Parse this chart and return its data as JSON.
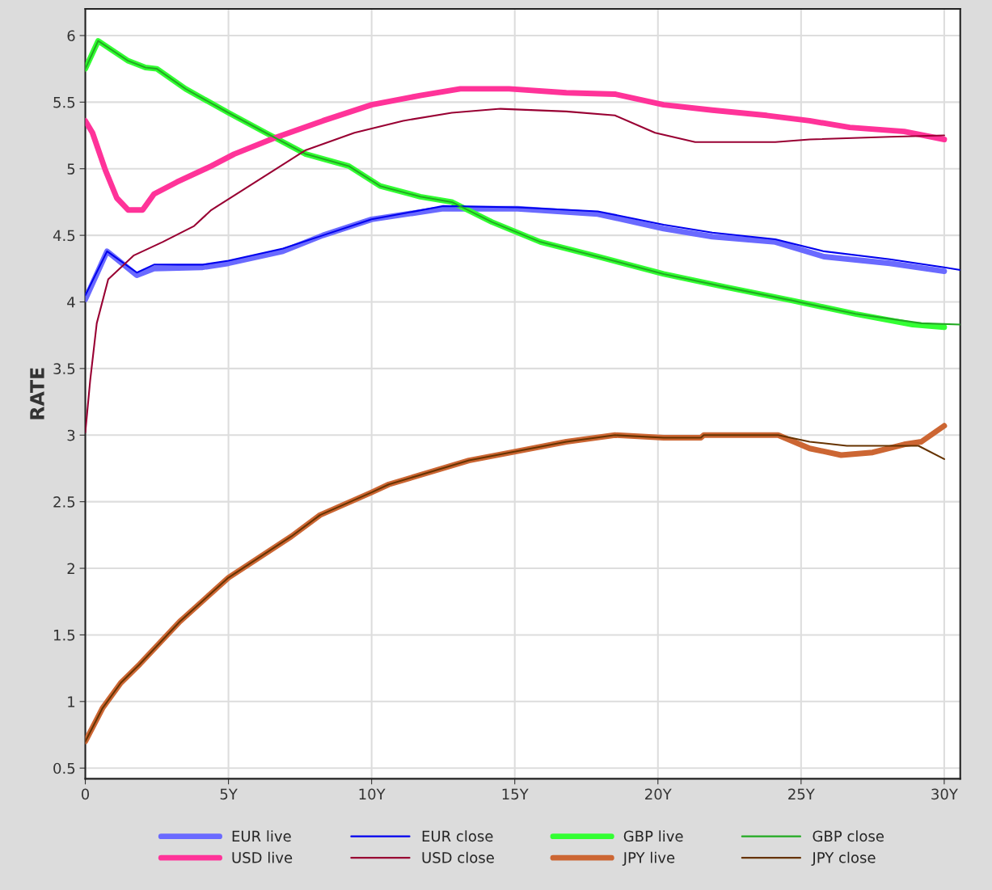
{
  "chart_data": {
    "type": "line",
    "ylabel": "RATE",
    "xlim": [
      0,
      30.56
    ],
    "ylim": [
      0.42,
      6.2
    ],
    "xticks": [
      0,
      {
        "value": 5,
        "label": "5Y"
      },
      {
        "value": 10,
        "label": "10Y"
      },
      {
        "value": 15,
        "label": "15Y"
      },
      {
        "value": 20,
        "label": "20Y"
      },
      {
        "value": 25,
        "label": "25Y"
      },
      {
        "value": 30,
        "label": "30Y"
      }
    ],
    "yticks": [
      0.5,
      1,
      1.5,
      2,
      2.5,
      3,
      3.5,
      4,
      4.5,
      5,
      5.5,
      6
    ],
    "grid": true,
    "legend": "bottom",
    "marker": "none",
    "line_style": "solid",
    "series": [
      {
        "name": "EUR live",
        "color": "#6a6aff",
        "x": [
          0,
          0.76,
          1.8,
          2.4,
          4.1,
          5,
          6.9,
          8.3,
          10,
          12.5,
          15.1,
          17.9,
          20.2,
          21.9,
          24.1,
          25.8,
          28.1,
          30
        ],
        "values": [
          4.02,
          4.38,
          4.2,
          4.25,
          4.26,
          4.29,
          4.38,
          4.5,
          4.62,
          4.7,
          4.7,
          4.66,
          4.55,
          4.49,
          4.45,
          4.34,
          4.29,
          4.23
        ]
      },
      {
        "name": "EUR close",
        "color": "#0000ee",
        "x": [
          0,
          0.76,
          1.8,
          2.4,
          4.1,
          5,
          6.9,
          8.3,
          10,
          12.5,
          15.1,
          17.9,
          20.2,
          21.9,
          24.1,
          25.8,
          28.1,
          30,
          30.56
        ],
        "values": [
          4.05,
          4.38,
          4.22,
          4.28,
          4.28,
          4.31,
          4.4,
          4.5,
          4.62,
          4.72,
          4.71,
          4.68,
          4.58,
          4.52,
          4.47,
          4.38,
          4.32,
          4.26,
          4.24
        ]
      },
      {
        "name": "GBP live",
        "color": "#33ff33",
        "x": [
          0,
          0.45,
          1.5,
          2.1,
          2.5,
          3.5,
          5,
          6.3,
          7.7,
          9.2,
          10.3,
          11.7,
          12.8,
          14.2,
          15.9,
          17.9,
          20.2,
          22.4,
          24.7,
          26.9,
          28.9,
          30
        ],
        "values": [
          5.75,
          5.96,
          5.81,
          5.76,
          5.75,
          5.6,
          5.42,
          5.27,
          5.11,
          5.02,
          4.87,
          4.79,
          4.75,
          4.6,
          4.45,
          4.34,
          4.21,
          4.11,
          4.01,
          3.91,
          3.83,
          3.81
        ]
      },
      {
        "name": "GBP close",
        "color": "#22aa22",
        "x": [
          0,
          0.45,
          1.5,
          2.1,
          2.5,
          3.5,
          5,
          6.3,
          7.7,
          9.2,
          10.3,
          11.7,
          12.8,
          14.2,
          15.9,
          17.9,
          20.2,
          22.4,
          24.7,
          26.9,
          29.2,
          30.56
        ],
        "values": [
          5.75,
          5.96,
          5.81,
          5.76,
          5.75,
          5.6,
          5.42,
          5.27,
          5.11,
          5.02,
          4.87,
          4.79,
          4.75,
          4.6,
          4.45,
          4.34,
          4.21,
          4.11,
          4.01,
          3.91,
          3.84,
          3.83
        ]
      },
      {
        "name": "USD live",
        "color": "#ff3399",
        "x": [
          0,
          0.25,
          0.7,
          1.1,
          1.5,
          2,
          2.4,
          3.2,
          4.4,
          5.2,
          6.6,
          8.3,
          10,
          11.7,
          13.1,
          14.8,
          16.8,
          18.5,
          20.2,
          21.9,
          23.8,
          25.3,
          26.7,
          28.6,
          30
        ],
        "values": [
          5.36,
          5.27,
          4.99,
          4.78,
          4.69,
          4.69,
          4.81,
          4.9,
          5.02,
          5.11,
          5.23,
          5.36,
          5.48,
          5.55,
          5.6,
          5.6,
          5.57,
          5.56,
          5.48,
          5.44,
          5.4,
          5.36,
          5.31,
          5.28,
          5.22
        ]
      },
      {
        "name": "USD close",
        "color": "#990033",
        "x": [
          0,
          0.17,
          0.4,
          0.8,
          1.7,
          2.7,
          3.8,
          4.4,
          5.5,
          6.6,
          7.7,
          9.4,
          11.1,
          12.8,
          14.5,
          16.8,
          18.5,
          19.9,
          21.3,
          24.1,
          25.3,
          28.1,
          30
        ],
        "values": [
          3.02,
          3.41,
          3.84,
          4.17,
          4.35,
          4.45,
          4.57,
          4.69,
          4.84,
          4.99,
          5.14,
          5.27,
          5.36,
          5.42,
          5.45,
          5.43,
          5.4,
          5.27,
          5.2,
          5.2,
          5.22,
          5.24,
          5.25
        ]
      },
      {
        "name": "JPY live",
        "color": "#cc6633",
        "x": [
          0,
          0.6,
          1.24,
          1.9,
          3.3,
          5,
          7.2,
          8.2,
          10,
          10.6,
          13.4,
          15.1,
          16.8,
          18.5,
          20.2,
          21.5,
          21.6,
          24.2,
          25.3,
          26.4,
          27.5,
          28.6,
          29.2,
          30
        ],
        "values": [
          0.7,
          0.95,
          1.14,
          1.28,
          1.6,
          1.93,
          2.24,
          2.4,
          2.57,
          2.63,
          2.81,
          2.88,
          2.95,
          3.0,
          2.98,
          2.98,
          3.0,
          3.0,
          2.9,
          2.85,
          2.87,
          2.93,
          2.95,
          3.07
        ]
      },
      {
        "name": "JPY close",
        "color": "#663300",
        "x": [
          0,
          0.6,
          1.24,
          1.9,
          3.3,
          5,
          7.2,
          8.2,
          10,
          10.6,
          13.4,
          15.1,
          16.8,
          18.5,
          20.2,
          21.5,
          21.6,
          24.2,
          25.3,
          26.6,
          29.1,
          30
        ],
        "values": [
          0.7,
          0.95,
          1.14,
          1.28,
          1.6,
          1.93,
          2.24,
          2.4,
          2.57,
          2.63,
          2.81,
          2.88,
          2.95,
          3.0,
          2.98,
          2.98,
          3.0,
          3.0,
          2.95,
          2.92,
          2.92,
          2.82
        ]
      }
    ]
  }
}
